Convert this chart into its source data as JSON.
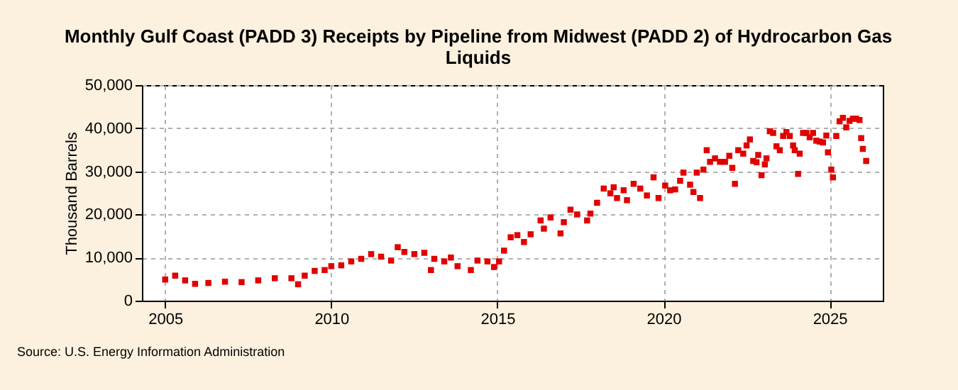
{
  "chart_data": {
    "type": "scatter",
    "title": "Monthly Gulf Coast (PADD 3) Receipts by Pipeline from Midwest (PADD 2) of Hydrocarbon Gas Liquids",
    "ylabel": "Thousand Barrels",
    "annotations": [
      "Source: U.S. Energy Information Administration"
    ],
    "marker": "square",
    "grid": true,
    "xlim": [
      2004.3,
      2026.6
    ],
    "xticks": [
      2005,
      2010,
      2015,
      2020,
      2025
    ],
    "ylim": [
      0,
      50000
    ],
    "yticks": [
      0,
      {
        "value": 10000,
        "label": "10,000"
      },
      {
        "value": 20000,
        "label": "20,000"
      },
      {
        "value": 30000,
        "label": "30,000"
      },
      {
        "value": 40000,
        "label": "40,000"
      },
      {
        "value": 50000,
        "label": "50,000"
      }
    ],
    "x": [
      2005.0,
      2005.3,
      2005.6,
      2005.9,
      2006.3,
      2006.8,
      2007.3,
      2007.8,
      2008.3,
      2008.8,
      2009.0,
      2009.2,
      2009.5,
      2009.8,
      2010.0,
      2010.3,
      2010.6,
      2010.9,
      2011.2,
      2011.5,
      2011.8,
      2012.0,
      2012.2,
      2012.5,
      2012.8,
      2013.0,
      2013.1,
      2013.4,
      2013.6,
      2013.8,
      2014.2,
      2014.4,
      2014.7,
      2014.9,
      2015.05,
      2015.2,
      2015.4,
      2015.6,
      2015.8,
      2016.0,
      2016.3,
      2016.4,
      2016.6,
      2016.9,
      2017.0,
      2017.2,
      2017.4,
      2017.7,
      2017.8,
      2018.0,
      2018.2,
      2018.4,
      2018.5,
      2018.6,
      2018.8,
      2018.9,
      2019.1,
      2019.3,
      2019.5,
      2019.7,
      2019.85,
      2020.05,
      2020.2,
      2020.35,
      2020.5,
      2020.6,
      2020.8,
      2020.9,
      2021.0,
      2021.1,
      2021.2,
      2021.3,
      2021.4,
      2021.55,
      2021.7,
      2021.85,
      2021.98,
      2022.07,
      2022.15,
      2022.25,
      2022.4,
      2022.5,
      2022.6,
      2022.7,
      2022.8,
      2022.85,
      2022.95,
      2023.05,
      2023.1,
      2023.2,
      2023.3,
      2023.4,
      2023.5,
      2023.6,
      2023.7,
      2023.8,
      2023.9,
      2023.95,
      2024.05,
      2024.1,
      2024.2,
      2024.3,
      2024.4,
      2024.5,
      2024.6,
      2024.7,
      2024.8,
      2024.9,
      2024.95,
      2025.05,
      2025.1,
      2025.2,
      2025.3,
      2025.4,
      2025.5,
      2025.6,
      2025.7,
      2025.8,
      2025.9,
      2025.95,
      2026.0,
      2026.1
    ],
    "series": [
      {
        "color": "#e00000",
        "values": [
          4900,
          5800,
          4700,
          3900,
          4100,
          4400,
          4300,
          4700,
          5200,
          5200,
          3800,
          5800,
          6900,
          7100,
          8000,
          8200,
          9100,
          9700,
          10800,
          10200,
          9300,
          12400,
          11300,
          10800,
          11100,
          7100,
          9700,
          9100,
          10000,
          8000,
          7100,
          9300,
          9100,
          7800,
          9100,
          11600,
          14700,
          15200,
          13600,
          15400,
          18600,
          16700,
          19300,
          15600,
          18200,
          21100,
          20000,
          18600,
          20200,
          22700,
          26000,
          24900,
          26300,
          23800,
          25600,
          23300,
          27100,
          26000,
          24400,
          28600,
          23800,
          26700,
          25600,
          25800,
          27800,
          29700,
          26900,
          25200,
          29700,
          23800,
          30400,
          34900,
          32200,
          33000,
          32200,
          32200,
          33600,
          30800,
          27100,
          34900,
          34100,
          36000,
          37400,
          32400,
          32100,
          33800,
          29100,
          31600,
          33000,
          39300,
          38900,
          35800,
          34900,
          38200,
          39100,
          38200,
          36000,
          34900,
          29400,
          34100,
          38900,
          38900,
          37900,
          38900,
          37100,
          36900,
          36700,
          38300,
          34400,
          30400,
          28600,
          38200,
          41600,
          42400,
          40200,
          41700,
          42200,
          42200,
          41900,
          37700,
          35200,
          32400
        ]
      }
    ]
  }
}
